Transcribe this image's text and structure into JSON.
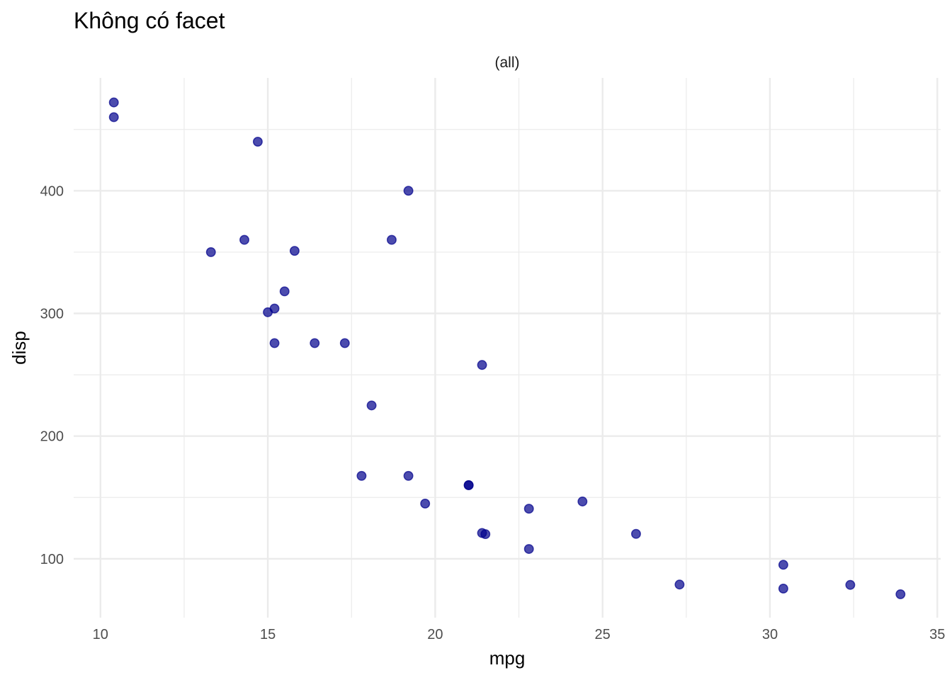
{
  "chart_data": {
    "type": "scatter",
    "title": "Không có facet",
    "facet_label": "(all)",
    "xlabel": "mpg",
    "ylabel": "disp",
    "xlim": [
      9.2,
      35.1
    ],
    "ylim": [
      52,
      492
    ],
    "x_ticks": [
      10,
      15,
      20,
      25,
      30,
      35
    ],
    "y_ticks": [
      100,
      200,
      300,
      400
    ],
    "grid": true,
    "point_color": "#00008b",
    "point_opacity": 0.7,
    "points": [
      {
        "x": 21.0,
        "y": 160
      },
      {
        "x": 21.0,
        "y": 160
      },
      {
        "x": 22.8,
        "y": 108
      },
      {
        "x": 21.4,
        "y": 258
      },
      {
        "x": 18.7,
        "y": 360
      },
      {
        "x": 18.1,
        "y": 225
      },
      {
        "x": 14.3,
        "y": 360
      },
      {
        "x": 24.4,
        "y": 146.7
      },
      {
        "x": 22.8,
        "y": 140.8
      },
      {
        "x": 19.2,
        "y": 167.6
      },
      {
        "x": 17.8,
        "y": 167.6
      },
      {
        "x": 16.4,
        "y": 275.8
      },
      {
        "x": 17.3,
        "y": 275.8
      },
      {
        "x": 15.2,
        "y": 275.8
      },
      {
        "x": 10.4,
        "y": 472
      },
      {
        "x": 10.4,
        "y": 460
      },
      {
        "x": 14.7,
        "y": 440
      },
      {
        "x": 32.4,
        "y": 78.7
      },
      {
        "x": 30.4,
        "y": 75.7
      },
      {
        "x": 33.9,
        "y": 71.1
      },
      {
        "x": 21.5,
        "y": 120.1
      },
      {
        "x": 15.5,
        "y": 318
      },
      {
        "x": 15.2,
        "y": 304
      },
      {
        "x": 13.3,
        "y": 350
      },
      {
        "x": 19.2,
        "y": 400
      },
      {
        "x": 27.3,
        "y": 79
      },
      {
        "x": 26.0,
        "y": 120.3
      },
      {
        "x": 30.4,
        "y": 95.1
      },
      {
        "x": 15.8,
        "y": 351
      },
      {
        "x": 19.7,
        "y": 145
      },
      {
        "x": 15.0,
        "y": 301
      },
      {
        "x": 21.4,
        "y": 121
      }
    ]
  }
}
